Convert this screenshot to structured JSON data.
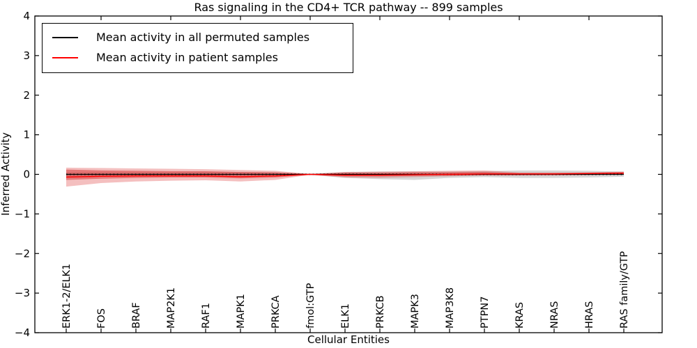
{
  "figure": {
    "title": "Ras signaling in the CD4+ TCR pathway -- 899 samples",
    "xlabel": "Cellular Entities",
    "ylabel": "Inferred Activity"
  },
  "legend": {
    "items": [
      {
        "label": "Mean activity in all permuted samples",
        "color": "#000000"
      },
      {
        "label": "Mean activity in patient samples",
        "color": "#ff0000"
      }
    ]
  },
  "chart_data": {
    "type": "line",
    "title": "Ras signaling in the CD4+ TCR pathway -- 899 samples",
    "xlabel": "Cellular Entities",
    "ylabel": "Inferred Activity",
    "ylim": [
      -4,
      4
    ],
    "yticks": [
      4,
      3,
      2,
      1,
      0,
      -1,
      -2,
      -3,
      -4
    ],
    "grid": false,
    "legend_position": "upper left",
    "categories": [
      "ERK1-2/ELK1",
      "FOS",
      "BRAF",
      "MAP2K1",
      "RAF1",
      "MAPK1",
      "PRKCA",
      "fmol:GTP",
      "ELK1",
      "PRKCB",
      "MAPK3",
      "MAP3K8",
      "PTPN7",
      "KRAS",
      "NRAS",
      "HRAS",
      "RAS family/GTP"
    ],
    "series": [
      {
        "name": "Mean activity in all permuted samples",
        "color": "#000000",
        "style": "solid",
        "values": [
          0,
          0,
          0,
          0,
          0,
          0,
          0,
          0,
          0,
          0,
          0,
          0,
          0,
          0,
          0,
          0,
          0
        ]
      },
      {
        "name": "Mean activity in patient samples",
        "color": "#ff0000",
        "style": "solid",
        "values": [
          -0.07,
          -0.05,
          -0.04,
          -0.04,
          -0.04,
          -0.06,
          -0.04,
          0.0,
          -0.02,
          -0.02,
          -0.01,
          0.0,
          0.01,
          0.01,
          0.01,
          0.02,
          0.03
        ]
      }
    ],
    "zero_line": {
      "value": 0,
      "style": "dotted",
      "color": "#000000"
    },
    "bands": [
      {
        "name": "permuted-samples-range",
        "color": "rgba(110,110,110,0.28)",
        "upper": [
          0.05,
          0.05,
          0.05,
          0.05,
          0.06,
          0.06,
          0.05,
          0.01,
          0.06,
          0.07,
          0.07,
          0.07,
          0.08,
          0.1,
          0.1,
          0.09,
          0.07
        ],
        "lower": [
          -0.06,
          -0.05,
          -0.05,
          -0.05,
          -0.06,
          -0.06,
          -0.05,
          -0.01,
          -0.09,
          -0.12,
          -0.14,
          -0.09,
          -0.07,
          -0.09,
          -0.09,
          -0.08,
          -0.06
        ]
      },
      {
        "name": "patient-samples-range-outer",
        "color": "rgba(222,60,60,0.33)",
        "upper": [
          0.17,
          0.16,
          0.15,
          0.14,
          0.13,
          0.11,
          0.09,
          0.01,
          0.06,
          0.07,
          0.08,
          0.09,
          0.1,
          0.05,
          0.05,
          0.05,
          0.07
        ],
        "lower": [
          -0.31,
          -0.22,
          -0.18,
          -0.16,
          -0.15,
          -0.18,
          -0.14,
          -0.01,
          -0.08,
          -0.09,
          -0.07,
          -0.05,
          -0.03,
          -0.03,
          -0.03,
          -0.02,
          -0.01
        ]
      },
      {
        "name": "patient-samples-range-inner",
        "color": "rgba(215,48,48,0.50)",
        "upper": [
          0.12,
          0.1,
          0.09,
          0.08,
          0.08,
          0.06,
          0.05,
          0.01,
          0.04,
          0.04,
          0.05,
          0.05,
          0.06,
          0.03,
          0.03,
          0.04,
          0.05
        ],
        "lower": [
          -0.14,
          -0.11,
          -0.09,
          -0.08,
          -0.08,
          -0.1,
          -0.08,
          -0.01,
          -0.05,
          -0.05,
          -0.04,
          -0.03,
          -0.02,
          -0.02,
          -0.01,
          -0.01,
          0.0
        ]
      }
    ]
  }
}
